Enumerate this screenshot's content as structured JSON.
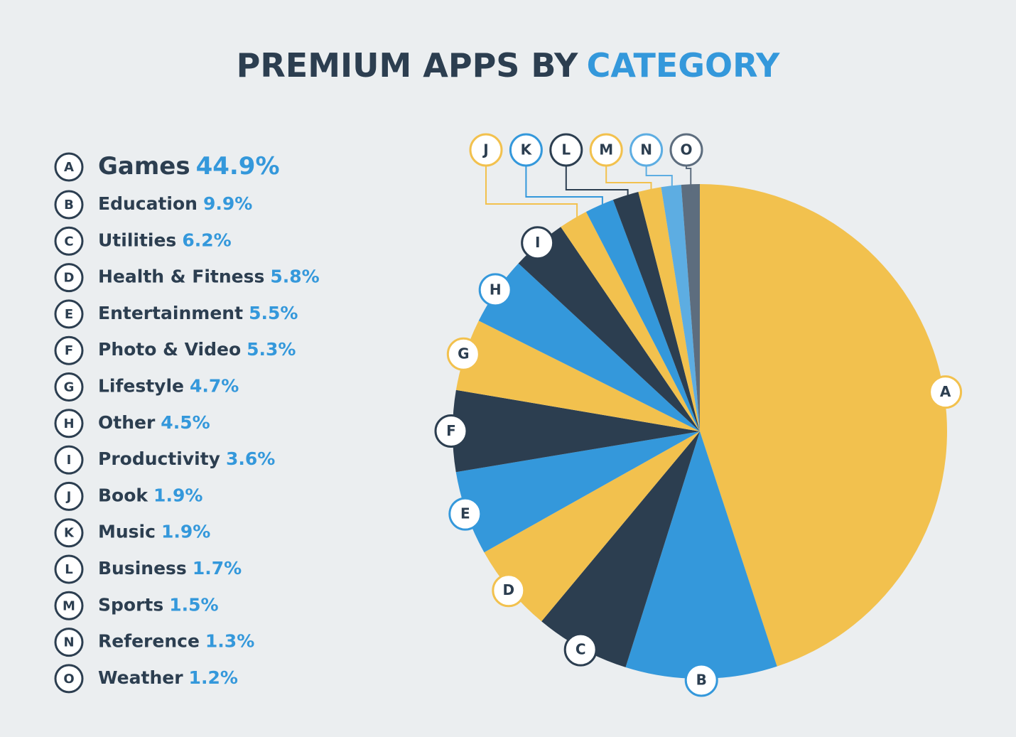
{
  "chart_data": {
    "type": "pie",
    "title": [
      "PREMIUM APPS BY",
      "CATEGORY"
    ],
    "letters": [
      "A",
      "B",
      "C",
      "D",
      "E",
      "F",
      "G",
      "H",
      "I",
      "J",
      "K",
      "L",
      "M",
      "N",
      "O"
    ],
    "categories": [
      "Games",
      "Education",
      "Utilities",
      "Health & Fitness",
      "Entertainment",
      "Photo & Video",
      "Lifestyle",
      "Other",
      "Productivity",
      "Book",
      "Music",
      "Business",
      "Sports",
      "Reference",
      "Weather"
    ],
    "values": [
      44.9,
      9.9,
      6.2,
      5.8,
      5.5,
      5.3,
      4.7,
      4.5,
      3.6,
      1.9,
      1.9,
      1.7,
      1.5,
      1.3,
      1.2
    ],
    "value_labels": [
      "44.9%",
      "9.9%",
      "6.2%",
      "5.8%",
      "5.5%",
      "5.3%",
      "4.7%",
      "4.5%",
      "3.6%",
      "1.9%",
      "1.9%",
      "1.7%",
      "1.5%",
      "1.3%",
      "1.2%"
    ],
    "colors": [
      "#f2c14e",
      "#3498db",
      "#2c3e50",
      "#f2c14e",
      "#3498db",
      "#2c3e50",
      "#f2c14e",
      "#3498db",
      "#2c3e50",
      "#f2c14e",
      "#3498db",
      "#2c3e50",
      "#f2c14e",
      "#5dade2",
      "#5d6d7e"
    ]
  }
}
